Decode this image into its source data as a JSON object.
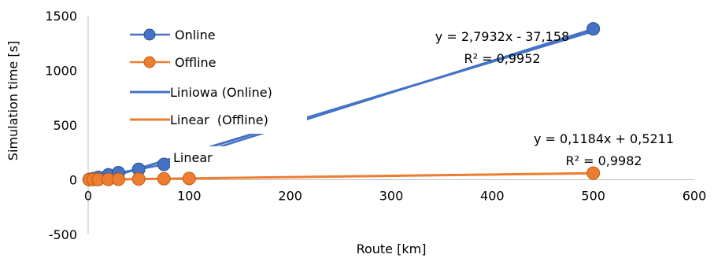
{
  "chart_data": {
    "type": "scatter",
    "xlabel": "Route [km]",
    "ylabel": "Simulation time [s]",
    "xlim": [
      0,
      600
    ],
    "ylim": [
      -500,
      1500
    ],
    "x_ticks": [
      "0",
      "100",
      "200",
      "300",
      "400",
      "500",
      "600"
    ],
    "y_ticks": [
      "-500",
      "0",
      "500",
      "1000",
      "1500"
    ],
    "grid": false,
    "legend_position": "top-left",
    "series": [
      {
        "name": "Online",
        "color": "#4472C4",
        "x": [
          1,
          5,
          10,
          20,
          30,
          50,
          75,
          500
        ],
        "y": [
          3,
          10,
          22,
          45,
          65,
          95,
          140,
          1380
        ]
      },
      {
        "name": "Offline",
        "color": "#ED7D31",
        "x": [
          1,
          5,
          10,
          20,
          30,
          50,
          75,
          100,
          500
        ],
        "y": [
          1,
          1.5,
          2,
          3,
          4,
          6,
          9,
          12,
          60
        ]
      }
    ],
    "trendlines": [
      {
        "name": "Liniowa (Online)",
        "color": "#4472C4",
        "slope": 2.7932,
        "intercept": -37.158,
        "equation": "y = 2,7932x - 37,158",
        "r2": "R² = 0,9952"
      },
      {
        "name": "Linear  (Offline)",
        "color": "#ED7D31",
        "slope": 0.1184,
        "intercept": 0.5211,
        "equation": "y = 0,1184x + 0,5211",
        "r2": "R² = 0,9982"
      }
    ],
    "extra_labels": [
      "Linear"
    ]
  }
}
